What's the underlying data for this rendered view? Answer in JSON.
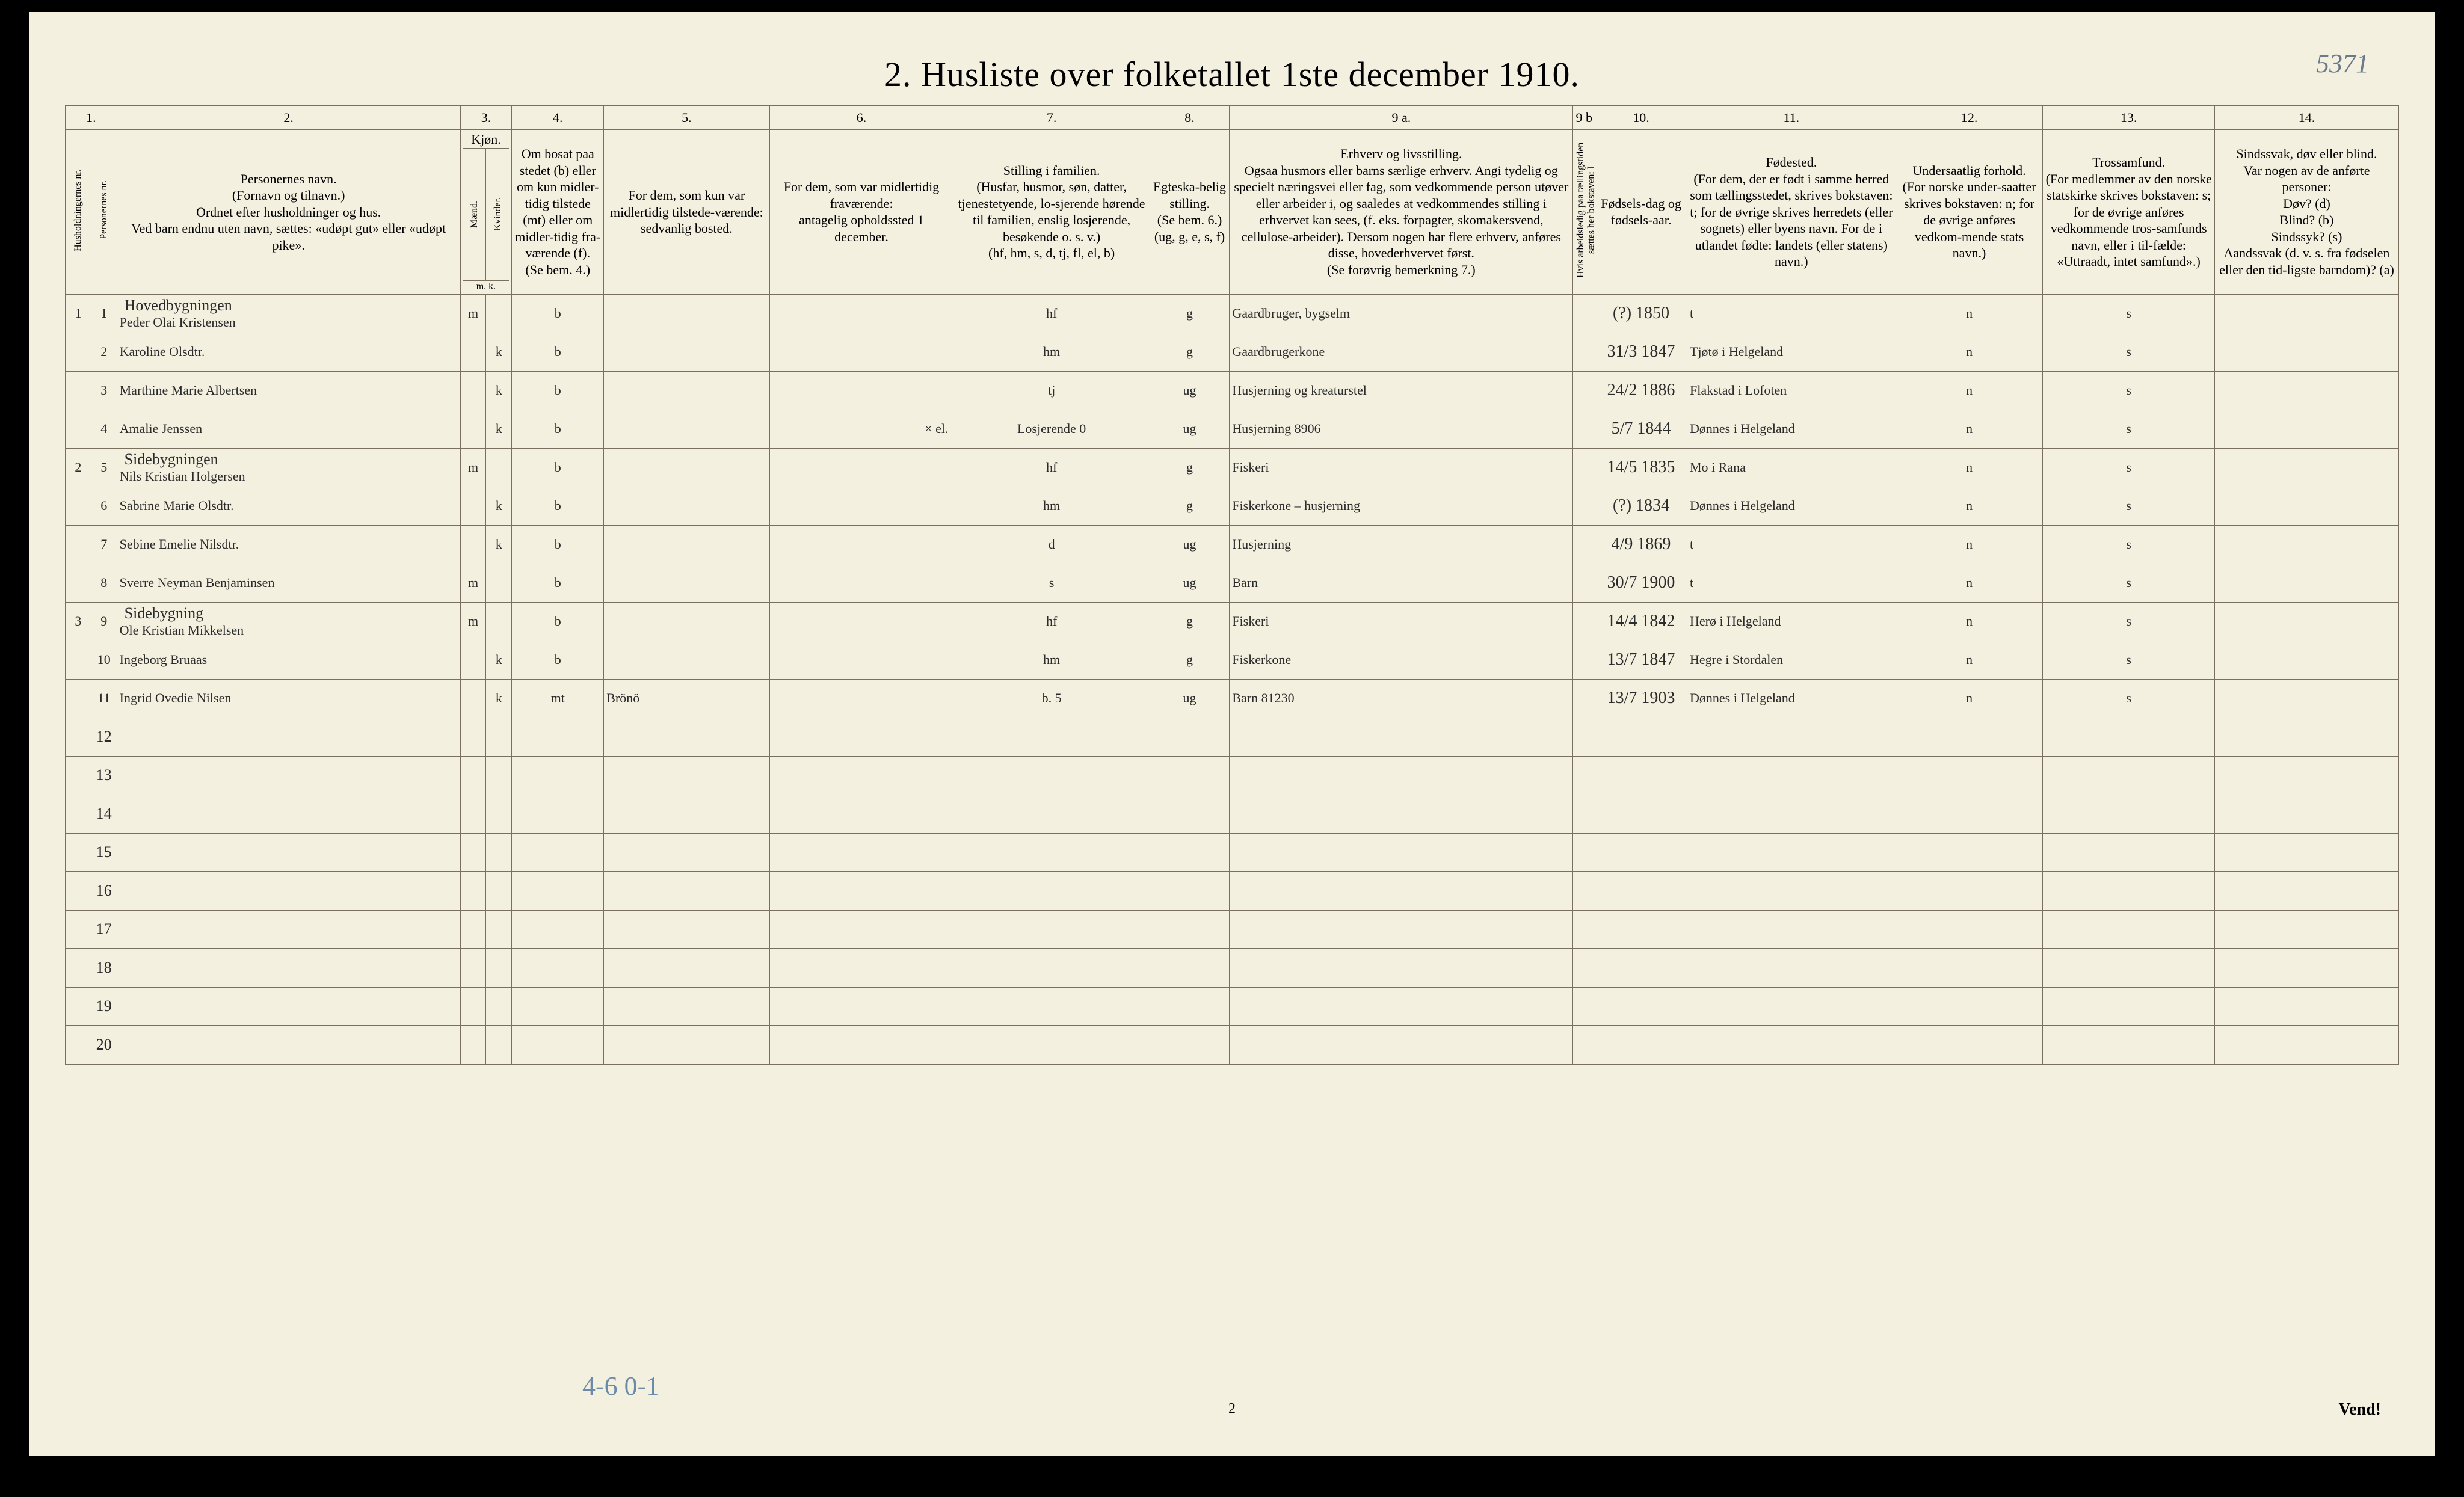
{
  "cornerNote": "5371",
  "title": "2.  Husliste over folketallet 1ste december 1910.",
  "colNumbers": [
    "1.",
    "2.",
    "3.",
    "4.",
    "5.",
    "6.",
    "7.",
    "8.",
    "9 a.",
    "9 b",
    "10.",
    "11.",
    "12.",
    "13.",
    "14."
  ],
  "headers": {
    "c1a": "Husholdningernes nr.",
    "c1b": "Personernes nr.",
    "c2": "Personernes navn.\n(Fornavn og tilnavn.)\nOrdnet efter husholdninger og hus.\nVed barn endnu uten navn, sættes: «udøpt gut» eller «udøpt pike».",
    "c3": "Kjøn.",
    "c3m": "Mænd.",
    "c3k": "Kvinder.",
    "c3mk": "m.  k.",
    "c4": "Om bosat paa stedet (b) eller om kun midler-tidig tilstede (mt) eller om midler-tidig fra-værende (f).\n(Se bem. 4.)",
    "c5": "For dem, som kun var midlertidig tilstede-værende:\nsedvanlig bosted.",
    "c6": "For dem, som var midlertidig fraværende:\nantagelig opholdssted 1 december.",
    "c7": "Stilling i familien.\n(Husfar, husmor, søn, datter, tjenestetyende, lo-sjerende hørende til familien, enslig losjerende, besøkende o. s. v.)\n(hf, hm, s, d, tj, fl, el, b)",
    "c8": "Egteska-belig stilling.\n(Se bem. 6.)\n(ug, g, e, s, f)",
    "c9a": "Erhverv og livsstilling.\nOgsaa husmors eller barns særlige erhverv. Angi tydelig og specielt næringsvei eller fag, som vedkommende person utøver eller arbeider i, og saaledes at vedkommendes stilling i erhvervet kan sees, (f. eks. forpagter, skomakersvend, cellulose-arbeider). Dersom nogen har flere erhverv, anføres disse, hovederhvervet først.\n(Se forøvrig bemerkning 7.)",
    "c9b": "Hvis arbeidsledig paa tællingstiden sættes her bokstaven: l",
    "c10": "Fødsels-dag og fødsels-aar.",
    "c11": "Fødested.\n(For dem, der er født i samme herred som tællingsstedet, skrives bokstaven: t; for de øvrige skrives herredets (eller sognets) eller byens navn. For de i utlandet fødte: landets (eller statens) navn.)",
    "c12": "Undersaatlig forhold.\n(For norske under-saatter skrives bokstaven: n; for de øvrige anføres vedkom-mende stats navn.)",
    "c13": "Trossamfund.\n(For medlemmer av den norske statskirke skrives bokstaven: s; for de øvrige anføres vedkommende tros-samfunds navn, eller i til-fælde: «Uttraadt, intet samfund».)",
    "c14": "Sindssvak, døv eller blind.\nVar nogen av de anførte personer:\nDøv?     (d)\nBlind?    (b)\nSindssyk? (s)\nAandssvak (d. v. s. fra fødselen eller den tid-ligste barndom)? (a)"
  },
  "buildings": {
    "b1": "Hovedbygningen",
    "b2": "Sidebygningen",
    "b3": "Sidebygning"
  },
  "rows": [
    {
      "hh": "1",
      "pn": "1",
      "name": "Peder Olai Kristensen",
      "sex": "m",
      "res": "b",
      "c5": "",
      "c6": "",
      "fam": "hf",
      "mar": "g",
      "occ": "Gaardbruger, bygselm",
      "bdate": "(?) 1850",
      "bplace": "t",
      "nat": "n",
      "rel": "s"
    },
    {
      "hh": "",
      "pn": "2",
      "name": "Karoline       Olsdtr.",
      "sex": "k",
      "res": "b",
      "c5": "",
      "c6": "",
      "fam": "hm",
      "mar": "g",
      "occ": "Gaardbrugerkone",
      "bdate": "31/3 1847",
      "bplace": "Tjøtø i Helgeland",
      "nat": "n",
      "rel": "s"
    },
    {
      "hh": "",
      "pn": "3",
      "name": "Marthine Marie Albertsen",
      "sex": "k",
      "res": "b",
      "c5": "",
      "c6": "",
      "fam": "tj",
      "mar": "ug",
      "occ": "Husjerning og kreaturstel",
      "bdate": "24/2 1886",
      "bplace": "Flakstad i Lofoten",
      "nat": "n",
      "rel": "s"
    },
    {
      "hh": "",
      "pn": "4",
      "name": "Amalie          Jenssen",
      "sex": "k",
      "res": "b",
      "c5": "",
      "c6": "× el.",
      "fam": "Losjerende 0",
      "mar": "ug",
      "occ": "Husjerning    8906",
      "bdate": "5/7 1844",
      "bplace": "Dønnes i Helgeland",
      "nat": "n",
      "rel": "s"
    },
    {
      "hh": "2",
      "pn": "5",
      "name": "Nils Kristian Holgersen",
      "sex": "m",
      "res": "b",
      "c5": "",
      "c6": "",
      "fam": "hf",
      "mar": "g",
      "occ": "Fiskeri",
      "bdate": "14/5 1835",
      "bplace": "Mo i Rana",
      "nat": "n",
      "rel": "s"
    },
    {
      "hh": "",
      "pn": "6",
      "name": "Sabrine Marie Olsdtr.",
      "sex": "k",
      "res": "b",
      "c5": "",
      "c6": "",
      "fam": "hm",
      "mar": "g",
      "occ": "Fiskerkone – husjerning",
      "bdate": "(?) 1834",
      "bplace": "Dønnes i Helgeland",
      "nat": "n",
      "rel": "s"
    },
    {
      "hh": "",
      "pn": "7",
      "name": "Sebine Emelie   Nilsdtr.",
      "sex": "k",
      "res": "b",
      "c5": "",
      "c6": "",
      "fam": "d",
      "mar": "ug",
      "occ": "Husjerning",
      "bdate": "4/9 1869",
      "bplace": "t",
      "nat": "n",
      "rel": "s"
    },
    {
      "hh": "",
      "pn": "8",
      "name": "Sverre Neyman Benjaminsen",
      "sex": "m",
      "res": "b",
      "c5": "",
      "c6": "",
      "fam": "s",
      "mar": "ug",
      "occ": "Barn",
      "bdate": "30/7 1900",
      "bplace": "t",
      "nat": "n",
      "rel": "s"
    },
    {
      "hh": "3",
      "pn": "9",
      "name": "Ole Kristian Mikkelsen",
      "sex": "m",
      "res": "b",
      "c5": "",
      "c6": "",
      "fam": "hf",
      "mar": "g",
      "occ": "Fiskeri",
      "bdate": "14/4 1842",
      "bplace": "Herø i Helgeland",
      "nat": "n",
      "rel": "s"
    },
    {
      "hh": "",
      "pn": "10",
      "name": "Ingeborg        Bruaas",
      "sex": "k",
      "res": "b",
      "c5": "",
      "c6": "",
      "fam": "hm",
      "mar": "g",
      "occ": "Fiskerkone",
      "bdate": "13/7 1847",
      "bplace": "Hegre i Stordalen",
      "nat": "n",
      "rel": "s"
    },
    {
      "hh": "",
      "pn": "11",
      "name": "Ingrid Ovedie Nilsen",
      "sex": "k",
      "res": "mt",
      "c5": "Brönö",
      "c6": "",
      "fam": "b.      5",
      "mar": "ug",
      "occ": "Barn  81230",
      "bdate": "13/7 1903",
      "bplace": "Dønnes i Helgeland",
      "nat": "n",
      "rel": "s"
    }
  ],
  "emptyRows": [
    "12",
    "13",
    "14",
    "15",
    "16",
    "17",
    "18",
    "19",
    "20"
  ],
  "footerNote": "4-6  0-1",
  "pageNum": "2",
  "vend": "Vend!",
  "colWidths": {
    "c1a": 42,
    "c1b": 42,
    "c2": 560,
    "c3m": 42,
    "c3k": 42,
    "c4": 150,
    "c5": 270,
    "c6": 300,
    "c7": 320,
    "c8": 130,
    "c9a": 560,
    "c9b": 36,
    "c10": 150,
    "c11": 340,
    "c12": 240,
    "c13": 280,
    "c14": 300
  },
  "colors": {
    "paper": "#f4f0e0",
    "ink": "#2b2b2b",
    "rule": "#7a7060",
    "pencilBlue": "#5a7aa0"
  }
}
